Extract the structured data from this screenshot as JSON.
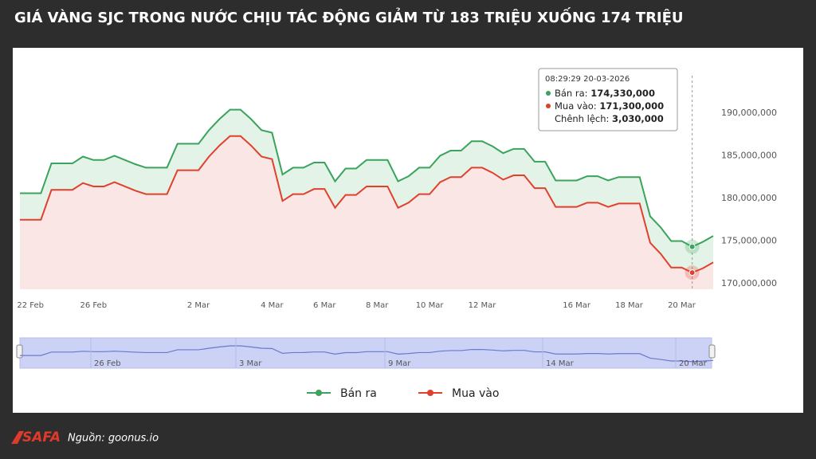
{
  "header": {
    "title": "GIÁ VÀNG SJC TRONG NƯỚC CHỊU TÁC ĐỘNG GIẢM TỪ 183 TRIỆU XUỐNG 174 TRIỆU"
  },
  "chart_data": {
    "type": "line",
    "categories": [
      null,
      "22 Feb",
      null,
      null,
      null,
      null,
      null,
      "26 Feb",
      null,
      null,
      null,
      null,
      null,
      null,
      null,
      null,
      null,
      "2 Mar",
      null,
      null,
      null,
      null,
      null,
      null,
      "4 Mar",
      null,
      null,
      null,
      null,
      "6 Mar",
      null,
      null,
      null,
      null,
      "8 Mar",
      null,
      null,
      null,
      null,
      "10 Mar",
      null,
      null,
      null,
      null,
      "12 Mar",
      null,
      null,
      null,
      null,
      null,
      null,
      null,
      null,
      "16 Mar",
      null,
      null,
      null,
      null,
      "18 Mar",
      null,
      null,
      null,
      null,
      "20 Mar",
      null,
      null,
      null
    ],
    "series": [
      {
        "name": "Bán ra",
        "color": "#3aa35c",
        "area_color": "#e3f3e7",
        "values": [
          180600000,
          180600000,
          180600000,
          184100000,
          184100000,
          184100000,
          184900000,
          184500000,
          184500000,
          185000000,
          184500000,
          184000000,
          183600000,
          183600000,
          183600000,
          186400000,
          186400000,
          186400000,
          188000000,
          189300000,
          190400000,
          190400000,
          189300000,
          188000000,
          187700000,
          182800000,
          183600000,
          183600000,
          184200000,
          184200000,
          182000000,
          183500000,
          183500000,
          184500000,
          184500000,
          184500000,
          182000000,
          182600000,
          183600000,
          183600000,
          185000000,
          185600000,
          185600000,
          186700000,
          186700000,
          186100000,
          185300000,
          185800000,
          185800000,
          184300000,
          184300000,
          182100000,
          182100000,
          182100000,
          182600000,
          182600000,
          182100000,
          182500000,
          182500000,
          182500000,
          177900000,
          176600000,
          175000000,
          175000000,
          174330000,
          174900000,
          175600000
        ]
      },
      {
        "name": "Mua vào",
        "color": "#e0412d",
        "area_color": "#fbe6e6",
        "values": [
          177500000,
          177500000,
          177500000,
          181000000,
          181000000,
          181000000,
          181800000,
          181400000,
          181400000,
          181900000,
          181400000,
          180900000,
          180500000,
          180500000,
          180500000,
          183300000,
          183300000,
          183300000,
          184900000,
          186200000,
          187300000,
          187300000,
          186200000,
          184900000,
          184600000,
          179700000,
          180500000,
          180500000,
          181100000,
          181100000,
          178900000,
          180400000,
          180400000,
          181400000,
          181400000,
          181400000,
          178900000,
          179500000,
          180500000,
          180500000,
          181900000,
          182500000,
          182500000,
          183600000,
          183600000,
          183000000,
          182200000,
          182700000,
          182700000,
          181200000,
          181200000,
          179000000,
          179000000,
          179000000,
          179500000,
          179500000,
          179000000,
          179400000,
          179400000,
          179400000,
          174800000,
          173500000,
          171900000,
          171900000,
          171300000,
          171800000,
          172500000
        ]
      }
    ],
    "ylim": [
      169350000,
      196900000
    ],
    "yticks": [
      {
        "value": 170000000,
        "label": "170,000,000"
      },
      {
        "value": 175000000,
        "label": "175,000,000"
      },
      {
        "value": 180000000,
        "label": "180,000,000"
      },
      {
        "value": 185000000,
        "label": "185,000,000"
      },
      {
        "value": 190000000,
        "label": "190,000,000"
      }
    ],
    "grid": false,
    "tooltip": {
      "time": "08:29:29 20-03-2026",
      "rows": [
        {
          "label": "Bán ra:",
          "value": "174,330,000"
        },
        {
          "label": "Mua vào:",
          "value": "171,300,000"
        },
        {
          "label": "Chênh lệch:",
          "value": "3,030,000"
        }
      ]
    },
    "navigator": {
      "labels": [
        "26 Feb",
        "3 Mar",
        "9 Mar",
        "14 Mar",
        "20 Mar"
      ]
    }
  },
  "footer": {
    "logo": "SAFA",
    "source": "Nguồn: goonus.io"
  }
}
